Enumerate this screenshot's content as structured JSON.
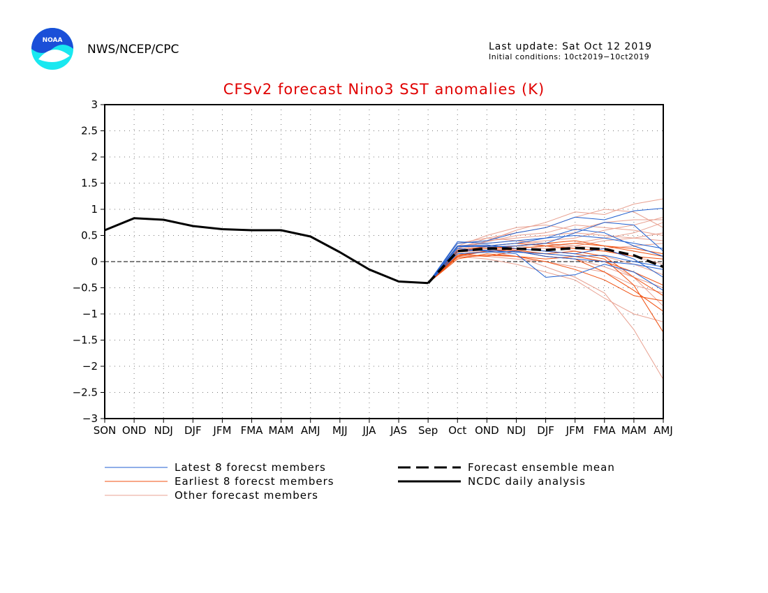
{
  "header": {
    "agency": "NWS/NCEP/CPC",
    "logo_text": "NOAA",
    "last_update": "Last update: Sat Oct 12 2019",
    "initial_conditions": "Initial conditions: 10ct2019−10ct2019"
  },
  "colors": {
    "title": "#e00000",
    "latest": "#1f5fd0",
    "earliest": "#f05010",
    "other": "#e8a090",
    "analysis": "#000000",
    "logo_top": "#1a4fd8",
    "logo_bottom": "#19e8f0"
  },
  "legend": {
    "latest": "Latest 8 forecst members",
    "earliest": "Earliest 8 forecst members",
    "other": "Other forecast members",
    "mean": "Forecast ensemble mean",
    "analysis": "NCDC daily analysis"
  },
  "chart_data": {
    "type": "line",
    "title": "CFSv2 forecast Nino3 SST anomalies (K)",
    "categories": [
      "SON",
      "OND",
      "NDJ",
      "DJF",
      "JFM",
      "FMA",
      "MAM",
      "AMJ",
      "MJJ",
      "JJA",
      "JAS",
      "Sep",
      "Oct",
      "OND",
      "NDJ",
      "DJF",
      "JFM",
      "FMA",
      "MAM",
      "AMJ"
    ],
    "ylim": [
      -3,
      3
    ],
    "yticks": [
      "3",
      "2.5",
      "2",
      "1.5",
      "1",
      "0.5",
      "0",
      "−0.5",
      "−1",
      "−1.5",
      "−2",
      "−2.5",
      "−3"
    ],
    "ytick_values": [
      3,
      2.5,
      2,
      1.5,
      1,
      0.5,
      0,
      -0.5,
      -1,
      -1.5,
      -2,
      -2.5,
      -3
    ],
    "grid": true,
    "legend_position": "bottom",
    "analysis": {
      "name": "NCDC daily analysis",
      "values": [
        0.6,
        0.83,
        0.8,
        0.68,
        0.62,
        0.6,
        0.6,
        0.48,
        0.18,
        -0.15,
        -0.38,
        -0.41
      ]
    },
    "ensemble_mean": {
      "name": "Forecast ensemble mean",
      "start_index": 11,
      "values": [
        -0.41,
        0.2,
        0.25,
        0.25,
        0.22,
        0.26,
        0.24,
        0.12,
        -0.1
      ]
    },
    "members_start_index": 11,
    "latest_members": [
      [
        -0.41,
        0.38,
        0.35,
        0.4,
        0.45,
        0.62,
        0.55,
        0.3,
        0.1
      ],
      [
        -0.41,
        0.3,
        0.28,
        0.3,
        0.35,
        0.55,
        0.75,
        0.7,
        0.2
      ],
      [
        -0.41,
        0.35,
        0.4,
        0.55,
        0.65,
        0.85,
        0.8,
        0.97,
        1.02
      ],
      [
        -0.41,
        0.25,
        0.2,
        0.15,
        -0.3,
        -0.25,
        -0.05,
        -0.2,
        -0.55
      ],
      [
        -0.41,
        0.3,
        0.32,
        0.25,
        0.2,
        0.15,
        0.25,
        0.05,
        -0.3
      ],
      [
        -0.41,
        0.2,
        0.22,
        0.18,
        0.15,
        0.1,
        0.12,
        0.0,
        -0.1
      ],
      [
        -0.41,
        0.28,
        0.3,
        0.35,
        0.45,
        0.5,
        0.45,
        0.35,
        0.25
      ],
      [
        -0.41,
        0.15,
        0.18,
        0.2,
        0.1,
        0.05,
        0.0,
        -0.05,
        -0.15
      ]
    ],
    "earliest_members": [
      [
        -0.41,
        0.1,
        0.2,
        0.25,
        0.2,
        0.15,
        0.05,
        -0.45,
        -1.35
      ],
      [
        -0.41,
        0.15,
        0.1,
        0.2,
        0.1,
        0.05,
        -0.2,
        -0.55,
        -0.95
      ],
      [
        -0.41,
        0.05,
        0.15,
        0.1,
        0.0,
        -0.15,
        -0.35,
        -0.65,
        -0.75
      ],
      [
        -0.41,
        0.2,
        0.25,
        0.3,
        0.35,
        0.4,
        0.3,
        0.2,
        0.1
      ],
      [
        -0.41,
        0.12,
        0.2,
        0.22,
        0.15,
        0.2,
        0.1,
        -0.3,
        -0.65
      ],
      [
        -0.41,
        0.18,
        0.3,
        0.35,
        0.3,
        0.25,
        0.2,
        0.1,
        0.05
      ],
      [
        -0.41,
        0.08,
        0.12,
        0.1,
        0.05,
        0.1,
        0.0,
        -0.2,
        -0.45
      ],
      [
        -0.41,
        0.22,
        0.28,
        0.25,
        0.3,
        0.35,
        0.3,
        0.25,
        0.15
      ]
    ],
    "other_members": [
      [
        -0.41,
        0.2,
        0.4,
        0.6,
        0.75,
        0.95,
        0.9,
        1.1,
        1.2
      ],
      [
        -0.41,
        0.25,
        0.45,
        0.55,
        0.65,
        0.85,
        1.0,
        0.95,
        0.65
      ],
      [
        -0.41,
        0.3,
        0.5,
        0.65,
        0.7,
        0.6,
        0.75,
        0.8,
        0.8
      ],
      [
        -0.41,
        0.15,
        0.2,
        0.1,
        -0.1,
        -0.3,
        -0.6,
        -1.3,
        -2.25
      ],
      [
        -0.41,
        0.1,
        0.05,
        -0.05,
        -0.2,
        -0.35,
        -0.7,
        -1.0,
        -1.15
      ],
      [
        -0.41,
        0.35,
        0.4,
        0.45,
        0.5,
        0.55,
        0.5,
        0.45,
        0.4
      ],
      [
        -0.41,
        0.25,
        0.3,
        0.2,
        0.15,
        0.1,
        0.0,
        -0.3,
        -0.85
      ],
      [
        -0.41,
        0.3,
        0.35,
        0.4,
        0.3,
        0.35,
        0.45,
        0.55,
        0.75
      ],
      [
        -0.41,
        0.18,
        0.22,
        0.3,
        0.35,
        0.25,
        0.2,
        0.1,
        -0.05
      ],
      [
        -0.41,
        0.2,
        0.3,
        0.35,
        0.4,
        0.45,
        0.6,
        0.7,
        0.85
      ],
      [
        -0.41,
        0.12,
        0.1,
        0.05,
        0.0,
        -0.1,
        -0.2,
        -0.45,
        -0.6
      ],
      [
        -0.41,
        0.28,
        0.38,
        0.5,
        0.55,
        0.7,
        0.65,
        0.6,
        0.5
      ],
      [
        -0.41,
        0.22,
        0.25,
        0.2,
        0.1,
        0.05,
        -0.1,
        -0.3,
        -0.5
      ],
      [
        -0.41,
        0.35,
        0.45,
        0.4,
        0.35,
        0.3,
        0.25,
        0.3,
        0.35
      ],
      [
        -0.41,
        0.15,
        0.2,
        0.25,
        0.3,
        0.2,
        0.1,
        -0.05,
        -0.25
      ],
      [
        -0.41,
        0.3,
        0.28,
        0.3,
        0.25,
        0.3,
        0.4,
        0.45,
        0.55
      ]
    ]
  }
}
